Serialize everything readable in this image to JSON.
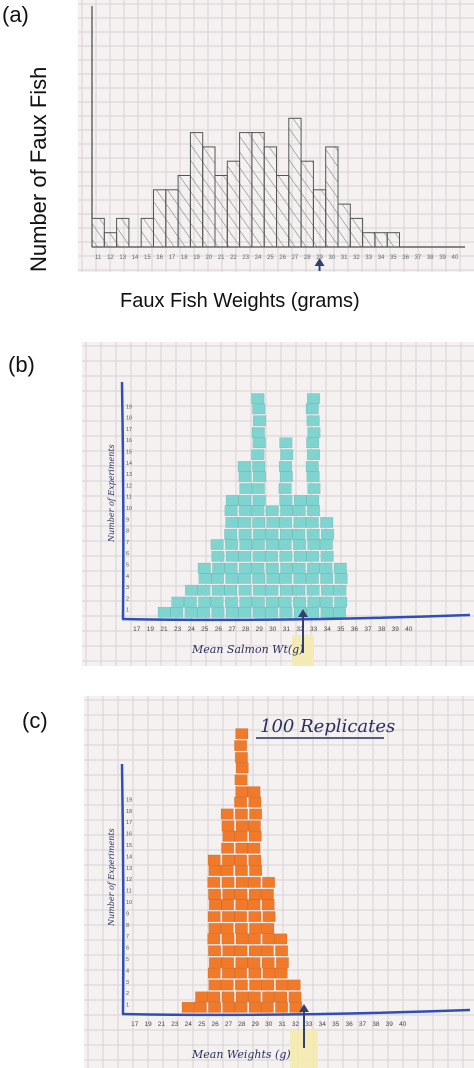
{
  "panels": {
    "a": {
      "label": "(a)",
      "ylabel": "Number of Faux Fish",
      "xlabel": "Faux Fish Weights (grams)"
    },
    "b": {
      "label": "(b)",
      "ylabel": "Number of Experiments",
      "xlabel": "Mean Salmon Wt(g)"
    },
    "c": {
      "label": "(c)",
      "title": "100 Replicates",
      "ylabel": "Number of Experiments",
      "xlabel": "Mean Weights (g)"
    }
  },
  "colors": {
    "paper": "#f4f1f0",
    "grid": "#d9d3d6",
    "ink": "#444444",
    "teal": "#7fd4cf",
    "orange": "#f07a2a",
    "tape": "#f4eab0",
    "arrow": "#33406e"
  },
  "chart_data": [
    {
      "type": "bar",
      "categories": [
        "11",
        "12",
        "13",
        "14",
        "15",
        "16",
        "17",
        "18",
        "19",
        "20",
        "21",
        "22",
        "23",
        "24",
        "25",
        "26",
        "27",
        "28",
        "29",
        "30",
        "31",
        "32",
        "33",
        "34",
        "35",
        "36",
        "37",
        "38",
        "39",
        "40"
      ],
      "values": [
        2,
        1,
        2,
        0,
        2,
        4,
        4,
        5,
        8,
        7,
        5,
        6,
        8,
        8,
        7,
        5,
        9,
        6,
        4,
        7,
        3,
        2,
        1,
        1,
        1,
        0,
        0,
        0,
        0,
        0
      ],
      "title": "",
      "xlabel": "Faux Fish Weights (grams)",
      "ylabel": "Number of Faux Fish",
      "marker_at": "29"
    },
    {
      "type": "bar",
      "categories": [
        "17",
        "19",
        "21",
        "23",
        "24",
        "25",
        "26",
        "27",
        "28",
        "29",
        "30",
        "31",
        "32",
        "33",
        "34",
        "35",
        "36",
        "37",
        "38",
        "39",
        "40"
      ],
      "values": [
        0,
        0,
        1,
        2,
        3,
        5,
        7,
        11,
        14,
        20,
        10,
        16,
        11,
        20,
        9,
        5,
        0,
        0,
        0,
        0,
        0
      ],
      "title": "",
      "xlabel": "Mean Salmon Wt(g)",
      "ylabel": "Number of Experiments",
      "marker_at": "29"
    },
    {
      "type": "bar",
      "categories": [
        "17",
        "19",
        "21",
        "23",
        "24",
        "25",
        "26",
        "27",
        "28",
        "29",
        "30",
        "31",
        "32",
        "33",
        "34",
        "35",
        "36",
        "37",
        "38",
        "39",
        "40"
      ],
      "values": [
        0,
        0,
        0,
        0,
        1,
        2,
        14,
        18,
        25,
        20,
        12,
        7,
        3,
        0,
        0,
        0,
        0,
        0,
        0,
        0,
        0
      ],
      "title": "100 Replicates",
      "xlabel": "Mean Weights (g)",
      "ylabel": "Number of Experiments",
      "marker_at": "29"
    }
  ]
}
